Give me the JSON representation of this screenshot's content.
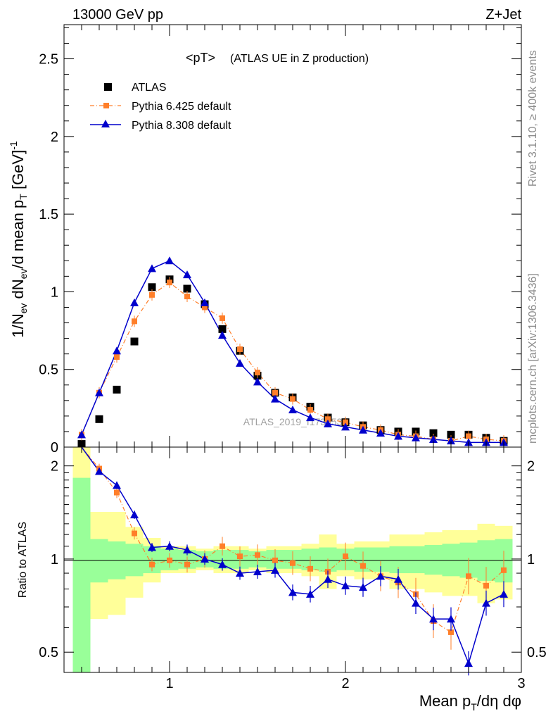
{
  "header": {
    "left": "13000 GeV pp",
    "right": "Z+Jet"
  },
  "side_texts": {
    "rivet": "Rivet 3.1.10, ≥ 400k events",
    "mcplots": "mcplots.cern.ch [arXiv:1306.3436]"
  },
  "watermark": "ATLAS_2019_I1736531",
  "colors": {
    "atlas": "#000000",
    "py6": "#ff7f2a",
    "py8": "#0000cc",
    "band_inner": "#99ff99",
    "band_outer": "#ffff99"
  },
  "chart_data": [
    {
      "type": "scatter",
      "title": "<pT>",
      "subtitle": "(ATLAS UE in Z production)",
      "xlabel": "Mean pT/dη dφ",
      "ylabel": "1/Nev dNev/d mean pT [GeV]-1",
      "xlim": [
        0.4,
        3.0
      ],
      "ylim": [
        0,
        2.72
      ],
      "x_ticks": [
        "1",
        "2",
        "3"
      ],
      "y_ticks": [
        "0",
        "0.5",
        "1",
        "1.5",
        "2",
        "2.5"
      ],
      "legend_position": "top-left",
      "x": [
        0.5,
        0.6,
        0.7,
        0.8,
        0.9,
        1.0,
        1.1,
        1.2,
        1.3,
        1.4,
        1.5,
        1.6,
        1.7,
        1.8,
        1.9,
        2.0,
        2.1,
        2.2,
        2.3,
        2.4,
        2.5,
        2.6,
        2.7,
        2.8,
        2.9
      ],
      "series": [
        {
          "name": "ATLAS",
          "marker": "square",
          "values": [
            0.02,
            0.18,
            0.37,
            0.68,
            1.03,
            1.08,
            1.02,
            0.92,
            0.76,
            0.62,
            0.46,
            0.35,
            0.32,
            0.26,
            0.19,
            0.16,
            0.14,
            0.11,
            0.1,
            0.1,
            0.09,
            0.08,
            0.08,
            0.06,
            0.04
          ]
        },
        {
          "name": "Pythia 6.425 default",
          "marker": "square-small",
          "line": "dash-dot",
          "values": [
            0.08,
            0.35,
            0.58,
            0.81,
            0.98,
            1.06,
            0.97,
            0.9,
            0.83,
            0.63,
            0.48,
            0.35,
            0.31,
            0.24,
            0.18,
            0.16,
            0.13,
            0.11,
            0.08,
            0.07,
            0.05,
            0.04,
            0.07,
            0.05,
            0.04
          ]
        },
        {
          "name": "Pythia 8.308 default",
          "marker": "triangle",
          "line": "solid",
          "values": [
            0.08,
            0.35,
            0.62,
            0.93,
            1.15,
            1.2,
            1.11,
            0.93,
            0.72,
            0.54,
            0.42,
            0.31,
            0.24,
            0.19,
            0.15,
            0.13,
            0.11,
            0.09,
            0.07,
            0.06,
            0.05,
            0.04,
            0.03,
            0.03,
            0.03
          ]
        }
      ]
    },
    {
      "type": "scatter",
      "title": "",
      "xlabel": "Mean pT/dη dφ",
      "ylabel": "Ratio to ATLAS",
      "ylog": true,
      "xlim": [
        0.4,
        3.0
      ],
      "ylim": [
        0.43,
        2.3
      ],
      "x_ticks": [
        "1",
        "2",
        "3"
      ],
      "y_ticks": [
        "0.5",
        "1",
        "2"
      ],
      "x": [
        0.5,
        0.6,
        0.7,
        0.8,
        0.9,
        1.0,
        1.1,
        1.2,
        1.3,
        1.4,
        1.5,
        1.6,
        1.7,
        1.8,
        1.9,
        2.0,
        2.1,
        2.2,
        2.3,
        2.4,
        2.5,
        2.6,
        2.7,
        2.8,
        2.9
      ],
      "bands": {
        "inner_lo": [
          0.43,
          0.84,
          0.86,
          0.88,
          0.9,
          0.92,
          0.93,
          0.94,
          0.93,
          0.93,
          0.94,
          0.93,
          0.93,
          0.92,
          0.91,
          0.92,
          0.91,
          0.91,
          0.9,
          0.9,
          0.89,
          0.88,
          0.87,
          0.85,
          0.84
        ],
        "inner_hi": [
          1.83,
          1.16,
          1.14,
          1.12,
          1.1,
          1.08,
          1.07,
          1.06,
          1.07,
          1.07,
          1.06,
          1.07,
          1.07,
          1.08,
          1.09,
          1.08,
          1.09,
          1.09,
          1.1,
          1.1,
          1.11,
          1.12,
          1.13,
          1.15,
          1.16
        ],
        "outer_lo": [
          0.43,
          0.64,
          0.66,
          0.75,
          0.84,
          0.9,
          0.9,
          0.92,
          0.9,
          0.9,
          0.92,
          0.9,
          0.9,
          0.88,
          0.8,
          0.88,
          0.86,
          0.86,
          0.8,
          0.8,
          0.78,
          0.76,
          0.76,
          0.72,
          0.74
        ],
        "outer_hi": [
          2.3,
          1.42,
          1.42,
          1.27,
          1.17,
          1.1,
          1.1,
          1.08,
          1.1,
          1.1,
          1.08,
          1.1,
          1.1,
          1.12,
          1.2,
          1.12,
          1.14,
          1.14,
          1.2,
          1.2,
          1.22,
          1.24,
          1.24,
          1.3,
          1.28
        ]
      },
      "series": [
        {
          "name": "Pythia 6.425 default",
          "values": [
            null,
            1.96,
            1.64,
            1.21,
            0.96,
            0.99,
            0.96,
            1.0,
            1.1,
            1.02,
            1.03,
            0.99,
            0.97,
            0.93,
            0.91,
            1.02,
            0.95,
            0.88,
            0.84,
            0.77,
            0.63,
            0.58,
            0.88,
            0.82,
            0.92
          ]
        },
        {
          "name": "Pythia 8.308 default",
          "values": [
            null,
            1.92,
            1.73,
            1.39,
            1.09,
            1.1,
            1.07,
            1.0,
            0.96,
            0.9,
            0.91,
            0.92,
            0.78,
            0.77,
            0.86,
            0.82,
            0.81,
            0.88,
            0.86,
            0.72,
            0.64,
            0.64,
            0.46,
            0.72,
            0.77
          ]
        }
      ]
    }
  ]
}
